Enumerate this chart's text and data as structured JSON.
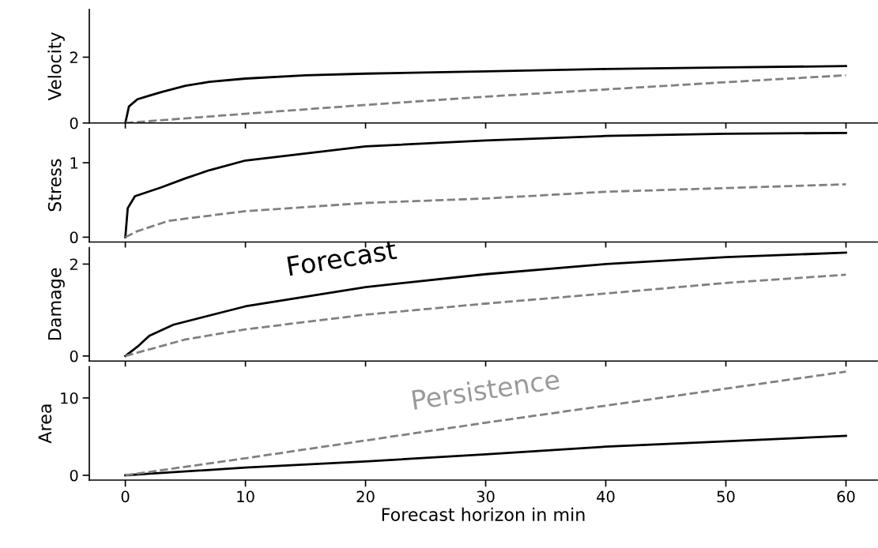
{
  "chart_data": [
    {
      "type": "line",
      "ylabel": "Velocity",
      "xlim": [
        -3,
        62.6
      ],
      "xticks": [
        0,
        10,
        20,
        30,
        40,
        50,
        60
      ],
      "ylim": [
        0,
        3.45
      ],
      "yticks": [
        0,
        2
      ],
      "tick_labels": "y",
      "series": [
        {
          "color": "#000000",
          "line_style": "solid",
          "x": [
            0,
            0.3,
            1,
            2,
            3,
            5,
            7,
            10,
            15,
            20,
            30,
            40,
            50,
            60
          ],
          "values": [
            0,
            0.5,
            0.72,
            0.83,
            0.94,
            1.13,
            1.25,
            1.35,
            1.45,
            1.5,
            1.57,
            1.64,
            1.69,
            1.73
          ]
        },
        {
          "color": "#808080",
          "line_style": "dashed",
          "x": [
            0,
            10,
            20,
            30,
            40,
            50,
            60
          ],
          "values": [
            0,
            0.28,
            0.55,
            0.8,
            1.02,
            1.24,
            1.45
          ]
        }
      ]
    },
    {
      "type": "line",
      "ylabel": "Stress",
      "xlim": [
        -3,
        62.6
      ],
      "xticks": [
        0,
        10,
        20,
        30,
        40,
        50,
        60
      ],
      "ylim": [
        -0.065,
        1.46
      ],
      "yticks": [
        0,
        1
      ],
      "tick_labels": "y",
      "series": [
        {
          "color": "#000000",
          "line_style": "solid",
          "x": [
            0,
            0.2,
            0.8,
            3,
            5,
            7,
            10,
            20,
            30,
            40,
            50,
            60
          ],
          "values": [
            0,
            0.39,
            0.55,
            0.67,
            0.79,
            0.9,
            1.03,
            1.22,
            1.3,
            1.36,
            1.39,
            1.4
          ]
        },
        {
          "color": "#808080",
          "line_style": "dashed",
          "x": [
            0,
            1,
            3.6,
            10,
            20,
            30,
            40,
            50,
            60
          ],
          "values": [
            0,
            0.08,
            0.22,
            0.35,
            0.46,
            0.52,
            0.61,
            0.66,
            0.71
          ]
        }
      ]
    },
    {
      "type": "line",
      "ylabel": "Damage",
      "xlim": [
        -3,
        62.6
      ],
      "xticks": [
        0,
        10,
        20,
        30,
        40,
        50,
        60
      ],
      "ylim": [
        -0.11,
        2.36
      ],
      "yticks": [
        0,
        2
      ],
      "tick_labels": "y",
      "series": [
        {
          "name": "Forecast",
          "color": "#000000",
          "line_style": "solid",
          "x": [
            0,
            1,
            2,
            4,
            10,
            20,
            30,
            40,
            50,
            60
          ],
          "values": [
            0,
            0.2,
            0.44,
            0.68,
            1.08,
            1.5,
            1.78,
            2.0,
            2.15,
            2.25
          ]
        },
        {
          "color": "#808080",
          "line_style": "dashed",
          "x": [
            0,
            5,
            10,
            20,
            30,
            40,
            50,
            60
          ],
          "values": [
            0,
            0.36,
            0.58,
            0.9,
            1.14,
            1.36,
            1.59,
            1.77
          ]
        }
      ]
    },
    {
      "type": "line",
      "ylabel": "Area",
      "xlabel": "Forecast horizon in min",
      "xlim": [
        -3,
        62.6
      ],
      "xticks": [
        0,
        10,
        20,
        30,
        40,
        50,
        60
      ],
      "ylim": [
        -0.62,
        14.05
      ],
      "yticks": [
        0,
        10
      ],
      "series": [
        {
          "color": "#000000",
          "line_style": "solid",
          "x": [
            0,
            2,
            10,
            20,
            30,
            40,
            50,
            60
          ],
          "values": [
            0,
            0.2,
            1.0,
            1.8,
            2.7,
            3.7,
            4.4,
            5.1
          ]
        },
        {
          "name": "Persistence",
          "color": "#808080",
          "line_style": "dashed",
          "x": [
            0,
            10,
            20,
            30,
            40,
            50,
            60
          ],
          "values": [
            0,
            2.2,
            4.5,
            6.8,
            9.0,
            11.2,
            13.4
          ]
        }
      ]
    }
  ]
}
